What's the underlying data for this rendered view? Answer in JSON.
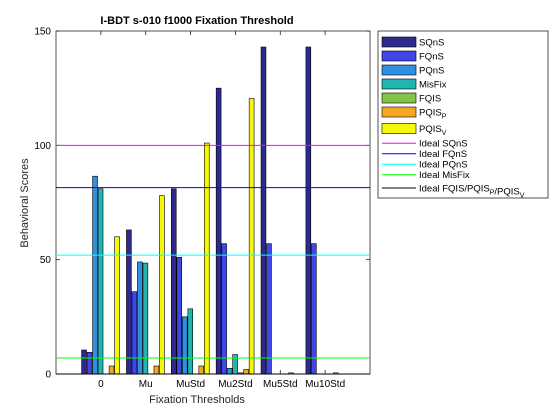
{
  "chart_data": {
    "type": "bar",
    "title": "I-BDT s-010 f1000 Fixation Threshold",
    "xlabel": "Fixation Thresholds",
    "ylabel": "Behavioral Scores",
    "ylim": [
      0,
      150
    ],
    "yticks": [
      0,
      50,
      100,
      150
    ],
    "grid": false,
    "legend_position": "right-outside",
    "categories": [
      "0",
      "Mu",
      "MuStd",
      "Mu2Std",
      "Mu5Std",
      "Mu10Std"
    ],
    "series": [
      {
        "name": "SQnS",
        "color": "#2e2a8c",
        "values": [
          10.5,
          63,
          81,
          125,
          143,
          143
        ]
      },
      {
        "name": "FQnS",
        "color": "#3f47e8",
        "values": [
          9.5,
          36,
          51,
          57,
          57,
          57
        ]
      },
      {
        "name": "PQnS",
        "color": "#2f8fe0",
        "values": [
          86.5,
          49,
          25,
          2.5,
          0,
          0
        ]
      },
      {
        "name": "MisFix",
        "color": "#22b5b0",
        "values": [
          81,
          48.5,
          28.5,
          8.5,
          0,
          0
        ]
      },
      {
        "name": "FQIS",
        "color": "#86c34a",
        "values": [
          0,
          0,
          0,
          0.5,
          0,
          0
        ]
      },
      {
        "name": "PQIS_P",
        "color": "#f5a623",
        "values": [
          3.5,
          3.5,
          3.5,
          2,
          0.5,
          0.5
        ]
      },
      {
        "name": "PQIS_V",
        "color": "#f7f70a",
        "values": [
          60,
          78,
          101,
          120.5,
          0,
          0
        ]
      }
    ],
    "reference_lines": [
      {
        "name": "Ideal SQnS",
        "color": "#ff00ff",
        "value": 100
      },
      {
        "name": "Ideal FQnS",
        "color": "#0000ff",
        "value": 81.5
      },
      {
        "name": "Ideal PQnS",
        "color": "#00ffff",
        "value": 52
      },
      {
        "name": "Ideal MisFix",
        "color": "#00ff00",
        "value": 7
      },
      {
        "name": "Ideal FQIS/PQIS_P/PQIS_V",
        "color": "#000000",
        "value": 0
      }
    ]
  }
}
